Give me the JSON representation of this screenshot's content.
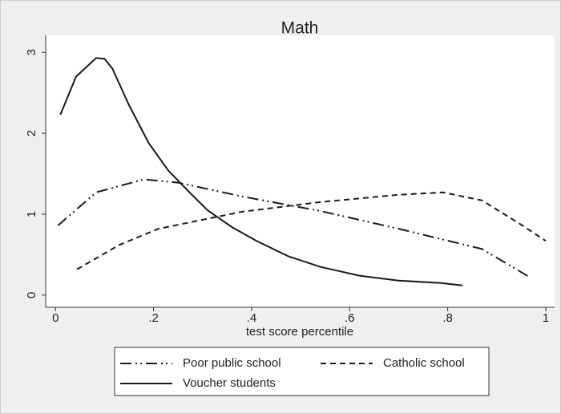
{
  "chart_data": {
    "type": "line",
    "title": "Math",
    "x_label": "test score percentile",
    "xlim": [
      -0.02,
      1.018
    ],
    "ylim": [
      -0.15,
      3.21
    ],
    "xticks": [
      0,
      {
        "value": 0.2,
        "label": ".2"
      },
      {
        "value": 0.4,
        "label": ".4"
      },
      {
        "value": 0.6,
        "label": ".6"
      },
      {
        "value": 0.8,
        "label": ".8"
      },
      1
    ],
    "yticks": [
      0,
      1,
      2,
      3
    ],
    "series": [
      {
        "name": "Poor public school",
        "color": "#1a1a1a",
        "x": [
          0.005,
          0.083,
          0.18,
          0.25,
          0.38,
          0.54,
          0.7,
          0.87,
          0.965
        ],
        "values": [
          0.86,
          1.27,
          1.43,
          1.39,
          1.22,
          1.04,
          0.82,
          0.57,
          0.23
        ]
      },
      {
        "name": "Catholic school",
        "color": "#1a1a1a",
        "x": [
          0.044,
          0.13,
          0.21,
          0.38,
          0.54,
          0.7,
          0.79,
          0.87,
          0.95,
          1.0
        ],
        "values": [
          0.32,
          0.62,
          0.82,
          1.03,
          1.15,
          1.24,
          1.27,
          1.17,
          0.87,
          0.67
        ]
      },
      {
        "name": "Voucher students",
        "color": "#1a1a1a",
        "x": [
          0.01,
          0.042,
          0.083,
          0.1,
          0.116,
          0.149,
          0.19,
          0.23,
          0.27,
          0.31,
          0.36,
          0.41,
          0.475,
          0.54,
          0.62,
          0.7,
          0.786,
          0.83
        ],
        "values": [
          2.23,
          2.7,
          2.93,
          2.92,
          2.8,
          2.36,
          1.88,
          1.54,
          1.29,
          1.05,
          0.84,
          0.67,
          0.48,
          0.35,
          0.24,
          0.18,
          0.15,
          0.12
        ]
      }
    ]
  }
}
